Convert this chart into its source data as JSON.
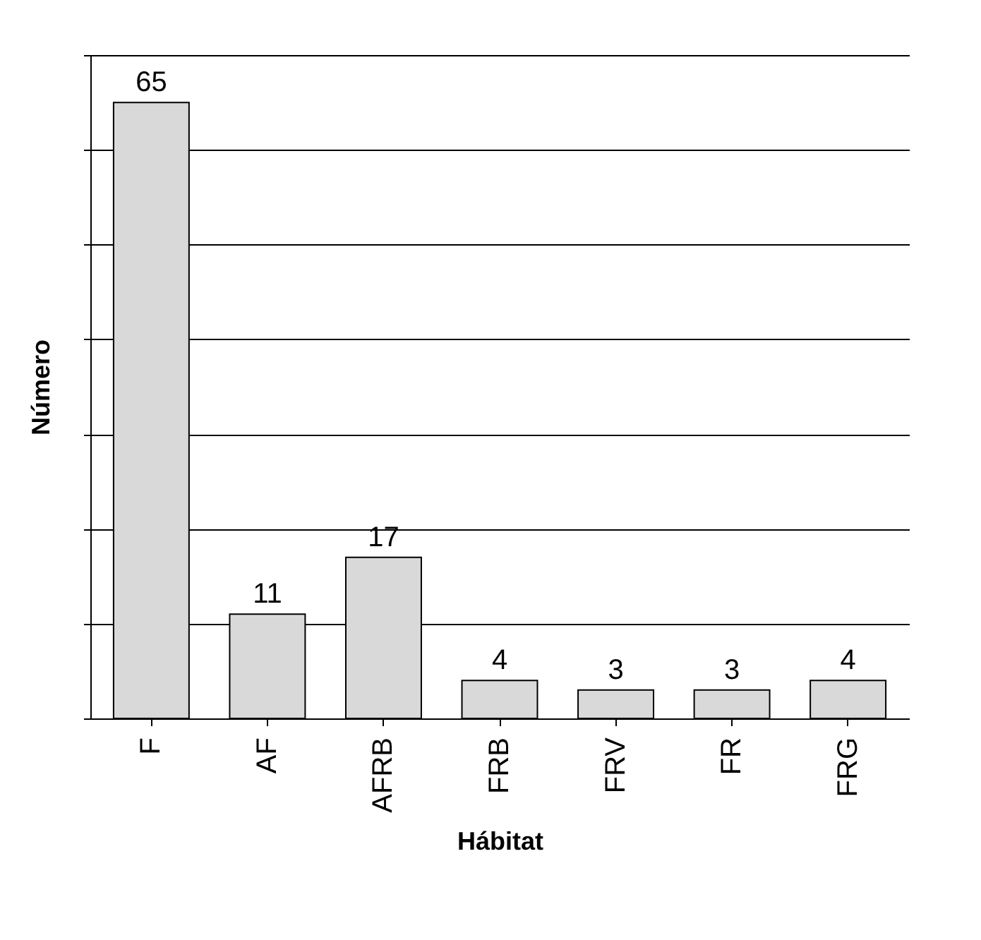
{
  "chart_data": {
    "type": "bar",
    "xlabel": "Hábitat",
    "ylabel": "Número",
    "categories": [
      "F",
      "AF",
      "AFRB",
      "FRB",
      "FRV",
      "FR",
      "FRG"
    ],
    "values": [
      65,
      11,
      17,
      4,
      3,
      3,
      4
    ],
    "color": "#d9d9d9",
    "ylim": [
      0,
      70
    ],
    "yticks": [
      {
        "value": 0,
        "label": null
      },
      {
        "value": 10,
        "label": null
      },
      {
        "value": 20,
        "label": null
      },
      {
        "value": 30,
        "label": null
      },
      {
        "value": 40,
        "label": null
      },
      {
        "value": 50,
        "label": null
      },
      {
        "value": 60,
        "label": null
      },
      {
        "value": 70,
        "label": null
      }
    ],
    "grid": "y",
    "tick_labels": "x",
    "data_labels": true
  }
}
